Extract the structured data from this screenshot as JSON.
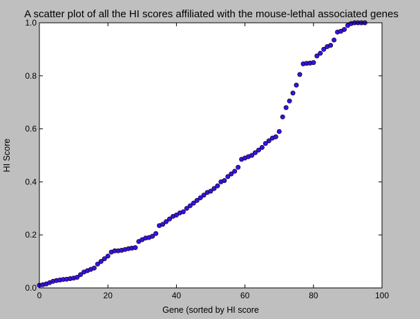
{
  "chart_data": {
    "type": "scatter",
    "title": "A scatter plot of all the HI scores affiliated with the mouse-lethal associated genes",
    "xlabel": "Gene (sorted by HI score",
    "ylabel": "HI Score",
    "xlim": [
      0,
      100
    ],
    "ylim": [
      0.0,
      1.0
    ],
    "xticks": [
      0,
      20,
      40,
      60,
      80,
      100
    ],
    "yticks": [
      0.0,
      0.2,
      0.4,
      0.6,
      0.8,
      1.0
    ],
    "xtick_labels": [
      "0",
      "20",
      "40",
      "60",
      "80",
      "100"
    ],
    "ytick_labels": [
      "0.0",
      "0.2",
      "0.4",
      "0.6",
      "0.8",
      "1.0"
    ],
    "grid": false,
    "marker_color": "#3a10e0",
    "marker_edge_color": "#000000",
    "background_color": "#bfbfbf",
    "plot_background": "#ffffff",
    "series": [
      {
        "x": [
          0,
          1,
          2,
          3,
          4,
          5,
          6,
          7,
          8,
          9,
          10,
          11,
          12,
          13,
          14,
          15,
          16,
          17,
          18,
          19,
          20,
          21,
          22,
          23,
          24,
          25,
          26,
          27,
          28,
          29,
          30,
          31,
          32,
          33,
          34,
          35,
          36,
          37,
          38,
          39,
          40,
          41,
          42,
          43,
          44,
          45,
          46,
          47,
          48,
          49,
          50,
          51,
          52,
          53,
          54,
          55,
          56,
          57,
          58,
          59,
          60,
          61,
          62,
          63,
          64,
          65,
          66,
          67,
          68,
          69,
          70,
          71,
          72,
          73,
          74,
          75,
          76,
          77,
          78,
          79,
          80,
          81,
          82,
          83,
          84,
          85,
          86,
          87,
          88,
          89,
          90,
          91,
          92,
          93,
          94,
          95
        ],
        "y": [
          0.01,
          0.012,
          0.015,
          0.02,
          0.025,
          0.028,
          0.03,
          0.032,
          0.033,
          0.035,
          0.037,
          0.04,
          0.05,
          0.06,
          0.065,
          0.07,
          0.075,
          0.09,
          0.1,
          0.11,
          0.12,
          0.135,
          0.14,
          0.14,
          0.142,
          0.145,
          0.148,
          0.15,
          0.152,
          0.175,
          0.182,
          0.188,
          0.19,
          0.195,
          0.205,
          0.235,
          0.24,
          0.25,
          0.26,
          0.27,
          0.275,
          0.283,
          0.287,
          0.3,
          0.31,
          0.32,
          0.33,
          0.34,
          0.35,
          0.36,
          0.365,
          0.375,
          0.385,
          0.4,
          0.405,
          0.42,
          0.43,
          0.44,
          0.455,
          0.485,
          0.49,
          0.495,
          0.5,
          0.51,
          0.52,
          0.53,
          0.545,
          0.555,
          0.565,
          0.57,
          0.59,
          0.645,
          0.68,
          0.705,
          0.735,
          0.765,
          0.805,
          0.845,
          0.847,
          0.848,
          0.85,
          0.875,
          0.885,
          0.9,
          0.91,
          0.915,
          0.935,
          0.965,
          0.968,
          0.975,
          0.99,
          0.997,
          1.0,
          1.0,
          1.0,
          1.0
        ]
      }
    ]
  }
}
